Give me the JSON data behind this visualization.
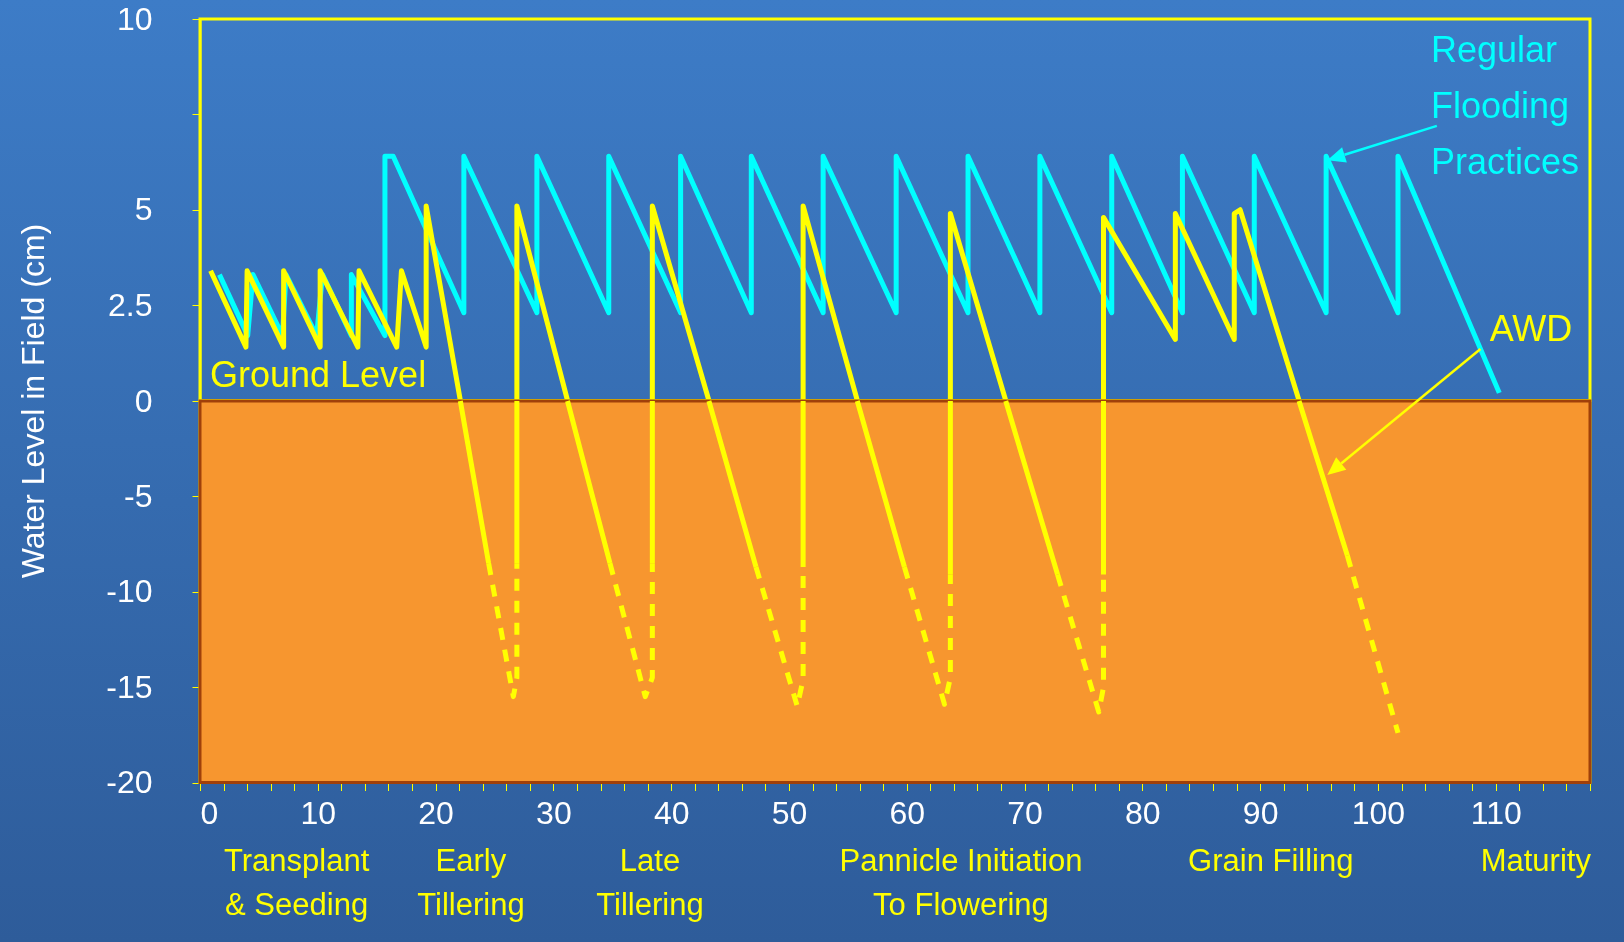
{
  "chart_data": [
    {
      "type": "line",
      "ylabel": "Water Level in Field (cm)",
      "tick_labels": "y",
      "xlim": [
        0,
        118
      ],
      "ylim": [
        0,
        10
      ],
      "yticks": [
        2.5,
        5,
        {
          "value": 7.5,
          "label": null
        },
        10
      ],
      "series": [
        {
          "name": "Regular Flooding Practices",
          "color": "#00ffff",
          "x": [
            1.65,
            4.05,
            4.5,
            7.0,
            7.3,
            9.9,
            10.4,
            12.85,
            12.85,
            15.7,
            15.7,
            16.4,
            22.4,
            22.4,
            28.6,
            28.6,
            34.7,
            34.7,
            40.8,
            40.8,
            46.8,
            46.8,
            52.9,
            52.9,
            59.1,
            59.1,
            65.2,
            65.2,
            71.3,
            71.3,
            77.4,
            77.4,
            83.4,
            83.4,
            89.5,
            89.5,
            95.6,
            95.6,
            101.7,
            101.7,
            110.3
          ],
          "values": [
            3.3,
            1.7,
            3.3,
            1.7,
            3.3,
            1.7,
            3.3,
            1.7,
            3.3,
            1.7,
            6.4,
            6.4,
            2.3,
            6.4,
            2.3,
            6.4,
            2.3,
            6.4,
            2.3,
            6.4,
            2.3,
            6.4,
            2.3,
            6.4,
            2.3,
            6.4,
            2.3,
            6.4,
            2.3,
            6.4,
            2.3,
            6.4,
            2.3,
            6.4,
            2.3,
            6.4,
            2.3,
            6.4,
            2.3,
            6.4,
            0.2
          ]
        },
        {
          "name": "AWD",
          "color": "#ffff00",
          "x": [
            0.9,
            3.9,
            4.0,
            7.1,
            7.1,
            10.2,
            10.2,
            13.4,
            13.5,
            16.7,
            17.1,
            19.2,
            19.2,
            22.1,
            24.5,
            26.9,
            26.9,
            31.2,
            34.8,
            38.4,
            38.4,
            43.2,
            47.2,
            51.2,
            51.2,
            55.8,
            60.0,
            63.7,
            63.7,
            68.4,
            72.5,
            76.7,
            76.7,
            82.8,
            82.8,
            87.8,
            87.8,
            88.3,
            93.3
          ],
          "values": [
            3.4,
            1.4,
            3.4,
            1.4,
            3.4,
            1.4,
            3.4,
            1.4,
            3.4,
            1.4,
            3.4,
            1.4,
            5.1,
            0,
            null,
            0,
            5.1,
            0,
            null,
            0,
            5.1,
            0,
            null,
            0,
            5.1,
            0,
            null,
            0,
            4.9,
            0,
            null,
            0,
            4.8,
            1.6,
            4.9,
            1.6,
            4.9,
            5.0,
            0
          ]
        }
      ]
    },
    {
      "type": "line",
      "xlim": [
        0,
        118
      ],
      "xticks": [
        0,
        {
          "value": 2,
          "label": null
        },
        {
          "value": 4,
          "label": null
        },
        {
          "value": 6,
          "label": null
        },
        {
          "value": 8,
          "label": null
        },
        10,
        {
          "value": 12,
          "label": null
        },
        {
          "value": 14,
          "label": null
        },
        {
          "value": 16,
          "label": null
        },
        {
          "value": 18,
          "label": null
        },
        20,
        {
          "value": 22,
          "label": null
        },
        {
          "value": 24,
          "label": null
        },
        {
          "value": 26,
          "label": null
        },
        {
          "value": 28,
          "label": null
        },
        30,
        {
          "value": 32,
          "label": null
        },
        {
          "value": 34,
          "label": null
        },
        {
          "value": 36,
          "label": null
        },
        {
          "value": 38,
          "label": null
        },
        40,
        {
          "value": 42,
          "label": null
        },
        {
          "value": 44,
          "label": null
        },
        {
          "value": 46,
          "label": null
        },
        {
          "value": 48,
          "label": null
        },
        50,
        {
          "value": 52,
          "label": null
        },
        {
          "value": 54,
          "label": null
        },
        {
          "value": 56,
          "label": null
        },
        {
          "value": 58,
          "label": null
        },
        60,
        {
          "value": 62,
          "label": null
        },
        {
          "value": 64,
          "label": null
        },
        {
          "value": 66,
          "label": null
        },
        {
          "value": 68,
          "label": null
        },
        70,
        {
          "value": 72,
          "label": null
        },
        {
          "value": 74,
          "label": null
        },
        {
          "value": 76,
          "label": null
        },
        {
          "value": 78,
          "label": null
        },
        80,
        {
          "value": 82,
          "label": null
        },
        {
          "value": 84,
          "label": null
        },
        {
          "value": 86,
          "label": null
        },
        {
          "value": 88,
          "label": null
        },
        90,
        {
          "value": 92,
          "label": null
        },
        {
          "value": 94,
          "label": null
        },
        {
          "value": 96,
          "label": null
        },
        {
          "value": 98,
          "label": null
        },
        100,
        {
          "value": 102,
          "label": null
        },
        {
          "value": 104,
          "label": null
        },
        {
          "value": 106,
          "label": null
        },
        {
          "value": 108,
          "label": null
        },
        110,
        {
          "value": 112,
          "label": null
        },
        {
          "value": 114,
          "label": null
        },
        {
          "value": 116,
          "label": null
        },
        {
          "value": 118,
          "label": null
        }
      ],
      "ylim": [
        -20,
        0
      ],
      "yticks": [
        -20,
        -15,
        -10,
        -5,
        0
      ],
      "series": [
        {
          "color": "#ffff00",
          "line_style": "solid",
          "x": [
            22.1,
            24.5,
            25.7,
            26.9,
            26.9,
            29.0,
            31.2,
            34.8,
            36.6,
            38.4,
            38.4,
            40.8,
            43.2,
            47.2,
            49.2,
            51.2,
            51.2,
            53.5,
            55.8,
            59.8,
            61.8,
            63.7,
            63.7,
            66.0,
            68.4,
            72.8,
            74.8,
            76.7,
            76.7,
            85.0,
            93.3,
            97.4
          ],
          "values": [
            0,
            -8.5,
            null,
            -8.5,
            0,
            null,
            0,
            -8.5,
            null,
            -8.5,
            0,
            null,
            0,
            -8.7,
            null,
            -8.7,
            0,
            null,
            0,
            -8.7,
            null,
            -9.1,
            0,
            null,
            0,
            -9.1,
            null,
            -9.1,
            0,
            null,
            0,
            -8.1
          ]
        },
        {
          "color": "#ffff00",
          "line_style": "dashed",
          "x": [
            24.5,
            26.6,
            26.9,
            26.9,
            30.0,
            34.8,
            37.8,
            38.4,
            38.4,
            43.0,
            47.2,
            50.7,
            51.2,
            51.2,
            55.0,
            59.8,
            63.2,
            63.7,
            63.7,
            68.0,
            72.8,
            76.3,
            76.7,
            76.7,
            85.0,
            97.4,
            101.7
          ],
          "values": [
            -8.5,
            -15.5,
            -14.5,
            -8.5,
            null,
            -8.5,
            -15.5,
            -14.5,
            -8.5,
            null,
            -8.7,
            -16.0,
            -14.6,
            -8.7,
            null,
            -8.7,
            -15.9,
            -14.5,
            -9.1,
            null,
            -9.1,
            -16.3,
            -15.0,
            -9.1,
            null,
            -8.1,
            -17.4
          ]
        }
      ],
      "bands": [
        {
          "axis": "y",
          "from": -20,
          "to": 0,
          "label": "Ground Level",
          "color": "#f7962f"
        }
      ],
      "annotations": [
        "Transplant\n& Seeding",
        "Early\nTillering",
        "Late\nTillering",
        "Pannicle Initiation\nTo Flowering",
        "Grain Filling",
        "Maturity"
      ]
    }
  ]
}
